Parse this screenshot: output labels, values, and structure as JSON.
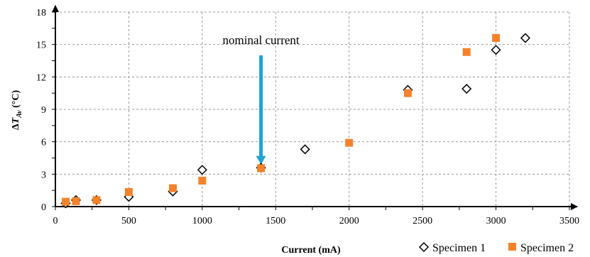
{
  "chart_data": {
    "type": "scatter",
    "xlabel": "Current (mA)",
    "ylabel": {
      "prefix": "Δ",
      "var": "T",
      "sub": "Av",
      "unit": " (°C)"
    },
    "xlim": [
      0,
      3500
    ],
    "ylim": [
      0,
      18
    ],
    "x_ticks": [
      0,
      500,
      1000,
      1500,
      2000,
      2500,
      3000,
      3500
    ],
    "y_ticks": [
      0,
      3,
      6,
      9,
      12,
      15,
      18
    ],
    "grid": true,
    "legend_position": "bottom-right",
    "series": [
      {
        "name": "Specimen 1",
        "marker": "diamond-open",
        "color": "#000000",
        "points": [
          {
            "x": 70,
            "y": 0.3
          },
          {
            "x": 140,
            "y": 0.6
          },
          {
            "x": 280,
            "y": 0.6
          },
          {
            "x": 500,
            "y": 0.9
          },
          {
            "x": 800,
            "y": 1.4
          },
          {
            "x": 1000,
            "y": 3.4
          },
          {
            "x": 1400,
            "y": 3.6
          },
          {
            "x": 1700,
            "y": 5.3
          },
          {
            "x": 2400,
            "y": 10.8
          },
          {
            "x": 2800,
            "y": 10.9
          },
          {
            "x": 3000,
            "y": 14.5
          },
          {
            "x": 3200,
            "y": 15.6
          }
        ]
      },
      {
        "name": "Specimen 2",
        "marker": "square",
        "color": "#F4822A",
        "points": [
          {
            "x": 70,
            "y": 0.45
          },
          {
            "x": 140,
            "y": 0.5
          },
          {
            "x": 280,
            "y": 0.6
          },
          {
            "x": 500,
            "y": 1.35
          },
          {
            "x": 800,
            "y": 1.7
          },
          {
            "x": 1000,
            "y": 2.4
          },
          {
            "x": 1400,
            "y": 3.55
          },
          {
            "x": 2000,
            "y": 5.9
          },
          {
            "x": 2400,
            "y": 10.5
          },
          {
            "x": 2800,
            "y": 14.3
          },
          {
            "x": 3000,
            "y": 15.6
          }
        ]
      }
    ],
    "annotation": {
      "text": "nominal current",
      "arrow_color": "#1FA3D1",
      "x": 1400,
      "y_from": 14,
      "y_to": 3.9
    }
  }
}
